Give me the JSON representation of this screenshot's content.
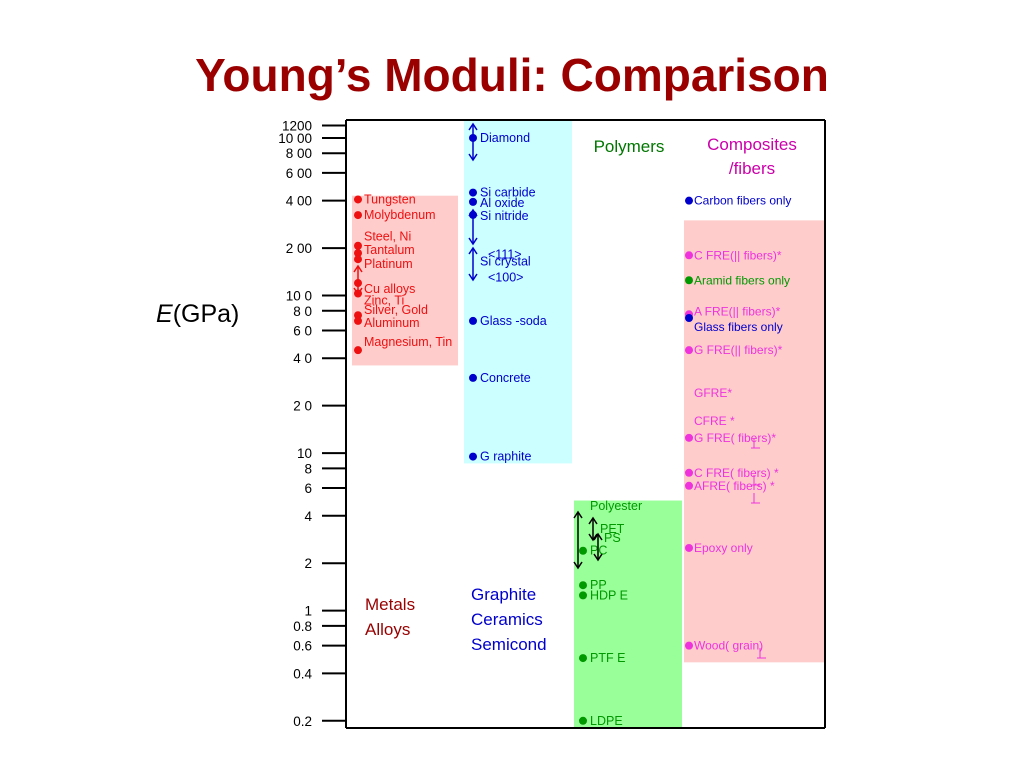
{
  "title": "Young’s Moduli:  Comparison",
  "chart_data": {
    "type": "scatter",
    "ylabel_var": "E",
    "ylabel_unit": "(GPa)",
    "yscale": "log",
    "ylim": [
      0.18,
      1300
    ],
    "grid": false,
    "ticks": [
      {
        "v": 1200,
        "label": "1200"
      },
      {
        "v": 1000,
        "label": "10 00"
      },
      {
        "v": 800,
        "label": "8 00"
      },
      {
        "v": 600,
        "label": "6 00"
      },
      {
        "v": 400,
        "label": "4 00"
      },
      {
        "v": 200,
        "label": "2 00"
      },
      {
        "v": 100,
        "label": "10 0"
      },
      {
        "v": 80,
        "label": "8 0"
      },
      {
        "v": 60,
        "label": "6 0"
      },
      {
        "v": 40,
        "label": "4 0"
      },
      {
        "v": 20,
        "label": "2 0"
      },
      {
        "v": 10,
        "label": "10"
      },
      {
        "v": 8,
        "label": "8"
      },
      {
        "v": 6,
        "label": "6"
      },
      {
        "v": 4,
        "label": "4"
      },
      {
        "v": 2,
        "label": "2"
      },
      {
        "v": 1,
        "label": "1"
      },
      {
        "v": 0.8,
        "label": "0.8"
      },
      {
        "v": 0.6,
        "label": "0.6"
      },
      {
        "v": 0.4,
        "label": "0.4"
      },
      {
        "v": 0.2,
        "label": "0.2"
      }
    ],
    "groups": [
      {
        "key": "metals",
        "bg": "#ffcccc",
        "color": "#ee1111",
        "label_color": "#990000",
        "range": [
          36,
          430
        ],
        "labels": [
          "Metals",
          "Alloys"
        ],
        "points": [
          {
            "name": "Tungsten",
            "value": 407
          },
          {
            "name": "Molybdenum",
            "value": 324
          },
          {
            "name": "Steel, Ni",
            "value": 207
          },
          {
            "name": "Tantalum",
            "value": 186
          },
          {
            "name": "Platinum",
            "value": 170
          },
          {
            "name": "Cu alloys",
            "value": 120
          },
          {
            "name": "Zinc, Ti",
            "value": 103
          },
          {
            "name": "Silver, Gold",
            "value": 75
          },
          {
            "name": "Aluminum",
            "value": 69
          },
          {
            "name": "Magnesium, Tin",
            "value": 45
          }
        ]
      },
      {
        "key": "ceramics",
        "bg": "#ccffff",
        "color": "#0000cc",
        "label_color": "#0000cc",
        "range": [
          8.6,
          1300
        ],
        "labels": [
          "Graphite",
          "Ceramics",
          "Semicond"
        ],
        "points": [
          {
            "name": "Diamond",
            "value": 1000
          },
          {
            "name": "Si carbide",
            "value": 450
          },
          {
            "name": "Al oxide",
            "value": 393
          },
          {
            "name": "Si nitride",
            "value": 325
          },
          {
            "name": "<111>",
            "value": 185
          },
          {
            "name": "Si crystal",
            "value": 165
          },
          {
            "name": "<100>",
            "value": 130
          },
          {
            "name": "Glass   -soda",
            "value": 69
          },
          {
            "name": "Concrete",
            "value": 30
          },
          {
            "name": "G raphite",
            "value": 9.5
          }
        ]
      },
      {
        "key": "polymers",
        "bg": "#99ff99",
        "color": "#009900",
        "label_color": "#007700",
        "range": [
          0.18,
          5.0
        ],
        "header": "Polymers",
        "points": [
          {
            "name": "Polyester",
            "value": 4.6
          },
          {
            "name": "PET",
            "value": 3.3
          },
          {
            "name": "PS",
            "value": 2.9
          },
          {
            "name": "PC",
            "value": 2.4
          },
          {
            "name": "PP",
            "value": 1.45
          },
          {
            "name": "HDP  E",
            "value": 1.25
          },
          {
            "name": "PTF  E",
            "value": 0.5
          },
          {
            "name": "LDPE",
            "value": 0.2
          }
        ]
      },
      {
        "key": "composites",
        "bg": "#ffcccc",
        "color": "#ee33dd",
        "label_color": "#cc00aa",
        "range": [
          0.47,
          300
        ],
        "header": "Composites /fibers",
        "points": [
          {
            "name": "Carbon    fibers only",
            "value": 400,
            "color": "#0000cc"
          },
          {
            "name": "C FRE(|| fibers)*",
            "value": 180
          },
          {
            "name": "Aramid fibers only",
            "value": 125,
            "color": "#009900"
          },
          {
            "name": "A FRE(|| fibers)*",
            "value": 76
          },
          {
            "name": "Glass fibers only",
            "value": 72,
            "color": "#0000cc"
          },
          {
            "name": "G FRE(|| fibers)*",
            "value": 45
          },
          {
            "name": "GFRE*",
            "value": 24
          },
          {
            "name": "CFRE   *",
            "value": 16
          },
          {
            "name": "G FRE(    fibers)*",
            "value": 12.5
          },
          {
            "name": "C FRE(    fibers)      *",
            "value": 7.5
          },
          {
            "name": "AFRE(    fibers)      *",
            "value": 6.2
          },
          {
            "name": "Epoxy only",
            "value": 2.5
          },
          {
            "name": "Wood(    grain)",
            "value": 0.6
          }
        ]
      }
    ]
  }
}
